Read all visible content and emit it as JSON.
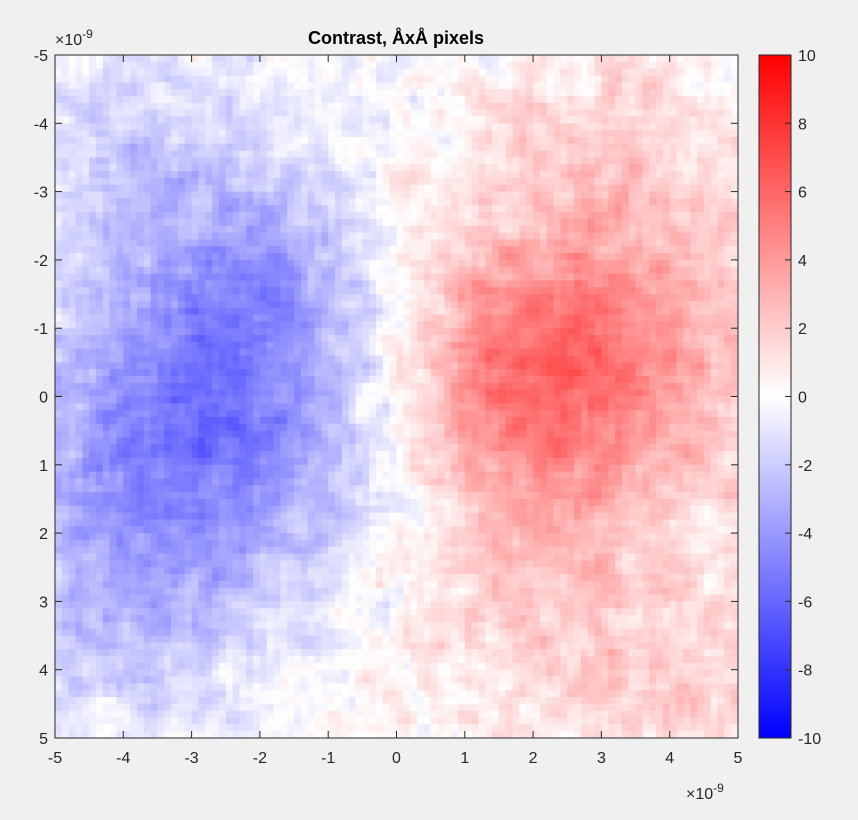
{
  "chart_data": {
    "type": "heatmap",
    "title": "Contrast, ÅxÅ pixels",
    "x": {
      "ticks": [
        -5,
        -4,
        -3,
        -2,
        -1,
        0,
        1,
        2,
        3,
        4,
        5
      ],
      "range": [
        -5,
        5
      ],
      "exponent_label": "×10",
      "exponent": "-9"
    },
    "y": {
      "ticks": [
        -5,
        -4,
        -3,
        -2,
        -1,
        0,
        1,
        2,
        3,
        4,
        5
      ],
      "range": [
        -5,
        5
      ],
      "reversed": true,
      "exponent_label": "×10",
      "exponent": "-9"
    },
    "colorbar": {
      "ticks": [
        10,
        8,
        6,
        4,
        2,
        0,
        -2,
        -4,
        -6,
        -8,
        -10
      ],
      "range": [
        -10,
        10
      ],
      "colormap": [
        "#0000ff",
        "#ffffff",
        "#ff0000"
      ]
    },
    "grid": false,
    "features": [
      {
        "x": -2.1,
        "y": 0.0,
        "value": -3.8,
        "spread": 1.8
      },
      {
        "x": -3.6,
        "y": 0.8,
        "value": -2.4,
        "spread": 1.6
      },
      {
        "x": -4.2,
        "y": -3.5,
        "value": -1.6,
        "spread": 1.4
      },
      {
        "x": -2.0,
        "y": -2.1,
        "value": -1.8,
        "spread": 1.0
      },
      {
        "x": -4.0,
        "y": 3.2,
        "value": -1.8,
        "spread": 1.3
      },
      {
        "x": 2.3,
        "y": 0.2,
        "value": 3.6,
        "spread": 1.6
      },
      {
        "x": 3.5,
        "y": -0.8,
        "value": 2.2,
        "spread": 1.5
      },
      {
        "x": 1.2,
        "y": -0.6,
        "value": 2.0,
        "spread": 1.2
      },
      {
        "x": 4.2,
        "y": 4.5,
        "value": 1.8,
        "spread": 1.2
      },
      {
        "x": 3.0,
        "y": -3.5,
        "value": 1.5,
        "spread": 1.5
      },
      {
        "x": 1.8,
        "y": 3.2,
        "value": 1.2,
        "spread": 1.4
      }
    ]
  }
}
